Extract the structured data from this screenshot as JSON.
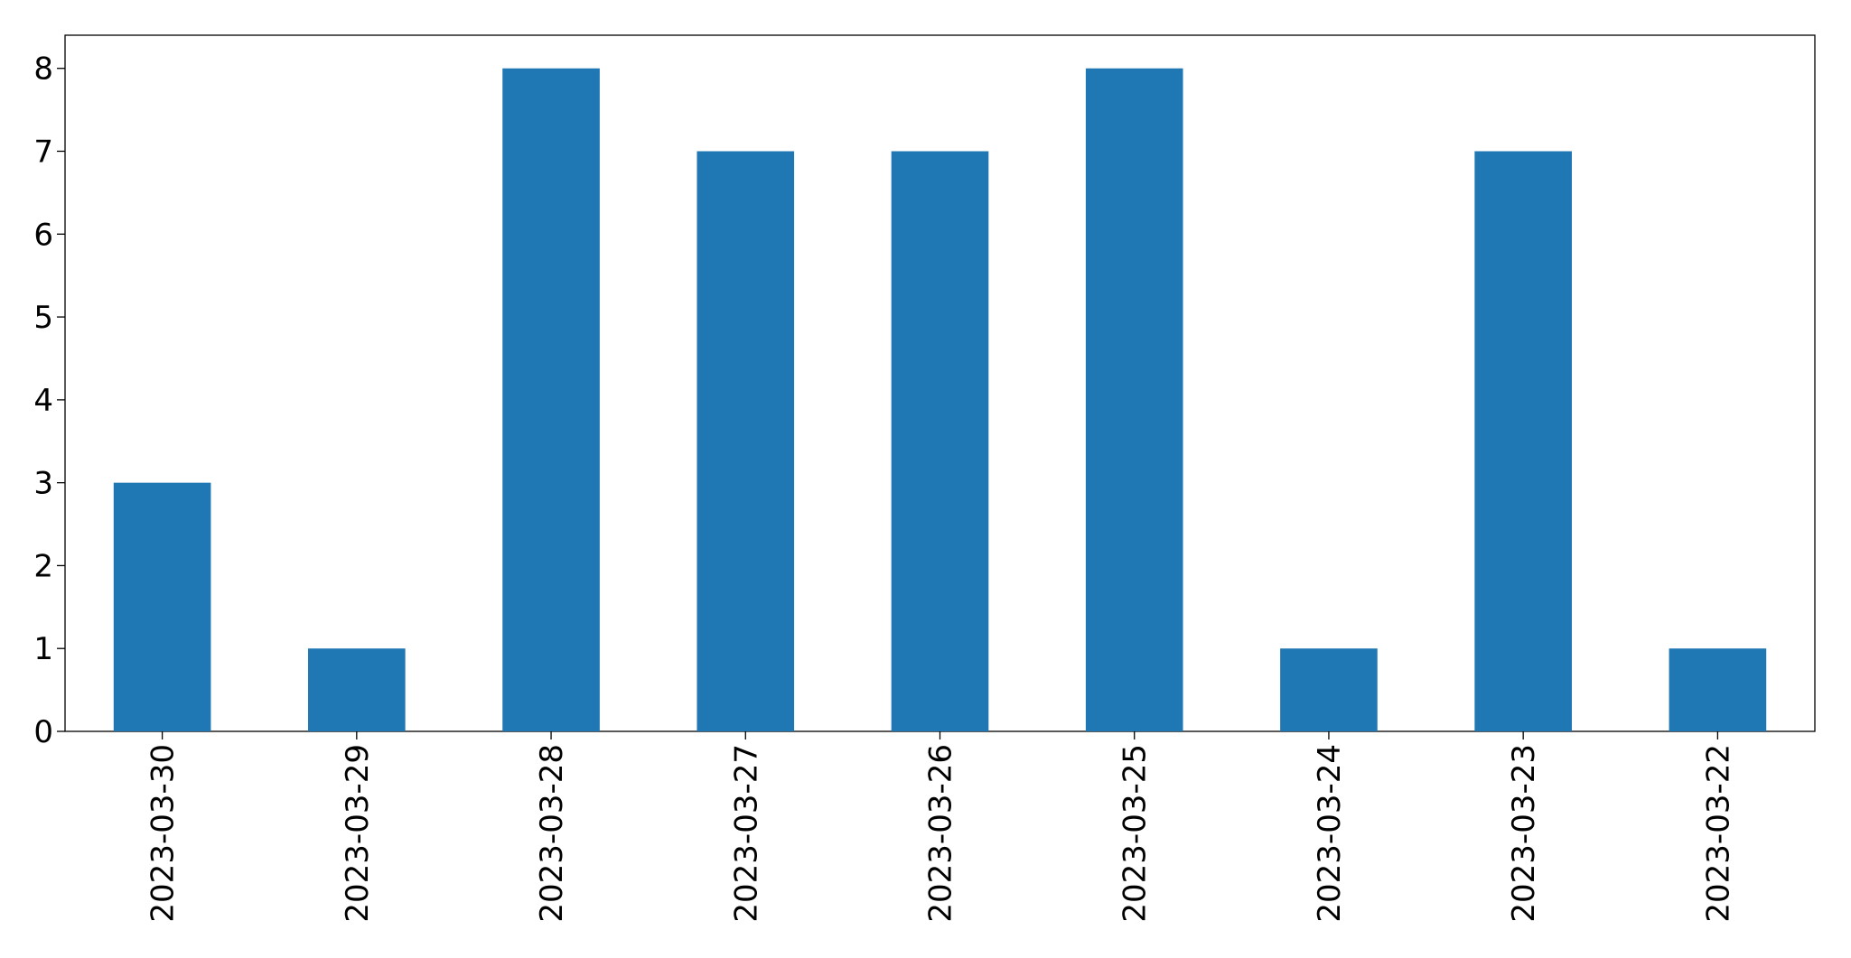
{
  "chart_data": {
    "type": "bar",
    "categories": [
      "2023-03-30",
      "2023-03-29",
      "2023-03-28",
      "2023-03-27",
      "2023-03-26",
      "2023-03-25",
      "2023-03-24",
      "2023-03-23",
      "2023-03-22"
    ],
    "values": [
      3,
      1,
      8,
      7,
      7,
      8,
      1,
      7,
      1
    ],
    "color": "#1f77b4",
    "ylim": [
      0,
      8.4
    ],
    "yticks": [
      0,
      1,
      2,
      3,
      4,
      5,
      6,
      7,
      8
    ],
    "grid": false
  }
}
